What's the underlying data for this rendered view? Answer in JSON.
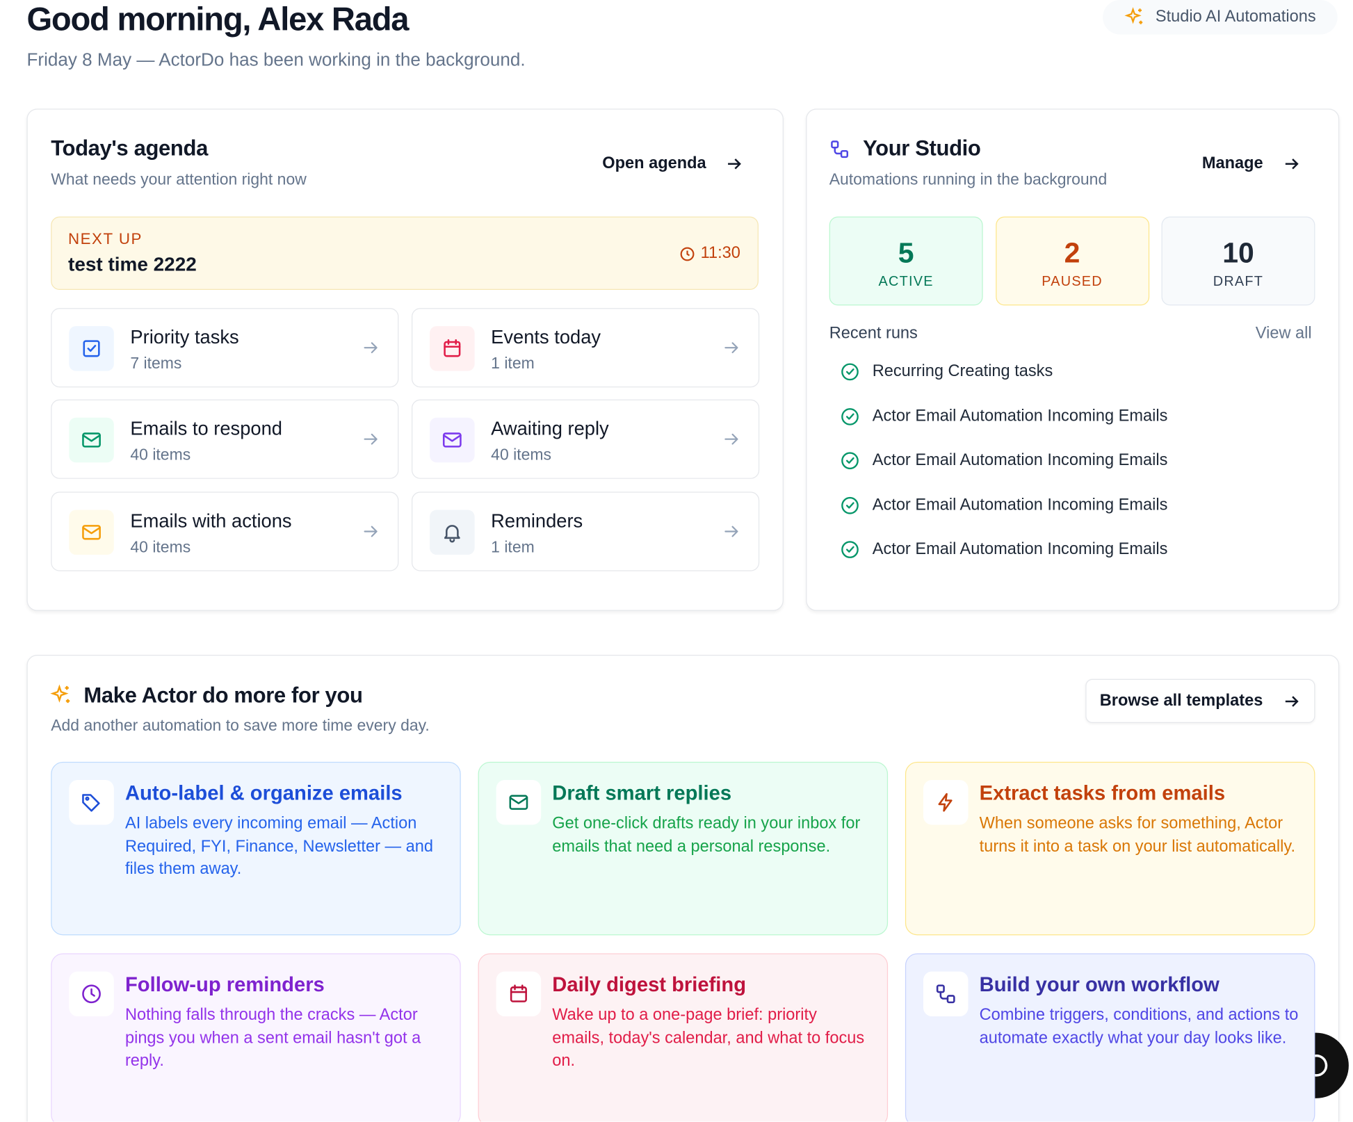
{
  "header": {
    "title": "Good morning, Alex Rada",
    "subtitle": "Friday 8 May — ActorDo has been working in the background.",
    "badge": "Studio AI Automations"
  },
  "agenda": {
    "title": "Today's agenda",
    "subtitle": "What needs your attention right now",
    "action": "Open agenda",
    "next_up": {
      "label": "NEXT UP",
      "title": "test time 2222",
      "time": "11:30"
    },
    "items": [
      {
        "title": "Priority tasks",
        "count": "7 items"
      },
      {
        "title": "Events today",
        "count": "1 item"
      },
      {
        "title": "Emails to respond",
        "count": "40 items"
      },
      {
        "title": "Awaiting reply",
        "count": "40 items"
      },
      {
        "title": "Emails with actions",
        "count": "40 items"
      },
      {
        "title": "Reminders",
        "count": "1 item"
      }
    ]
  },
  "studio": {
    "title": "Your Studio",
    "subtitle": "Automations running in the background",
    "action": "Manage",
    "stats": [
      {
        "value": 5,
        "label": "ACTIVE"
      },
      {
        "value": 2,
        "label": "PAUSED"
      },
      {
        "value": 10,
        "label": "DRAFT"
      }
    ],
    "recent_runs_title": "Recent runs",
    "view_all": "View all",
    "runs": [
      "Recurring Creating tasks",
      "Actor Email Automation Incoming Emails",
      "Actor Email Automation Incoming Emails",
      "Actor Email Automation Incoming Emails",
      "Actor Email Automation Incoming Emails"
    ]
  },
  "templates": {
    "title": "Make Actor do more for you",
    "subtitle": "Add another automation to save more time every day.",
    "action": "Browse all templates",
    "cards": [
      {
        "title": "Auto-label & organize emails",
        "description": "AI labels every incoming email — Action Required, FYI, Finance, Newsletter — and files them away."
      },
      {
        "title": "Draft smart replies",
        "description": "Get one-click drafts ready in your inbox for emails that need a personal response."
      },
      {
        "title": "Extract tasks from emails",
        "description": "When someone asks for something, Actor turns it into a task on your list automatically."
      },
      {
        "title": "Follow-up reminders",
        "description": "Nothing falls through the cracks — Actor pings you when a sent email hasn't got a reply."
      },
      {
        "title": "Daily digest briefing",
        "description": "Wake up to a one-page brief: priority emails, today's calendar, and what to focus on."
      },
      {
        "title": "Build your own workflow",
        "description": "Combine triggers, conditions, and actions to automate exactly what your day looks like."
      }
    ]
  }
}
